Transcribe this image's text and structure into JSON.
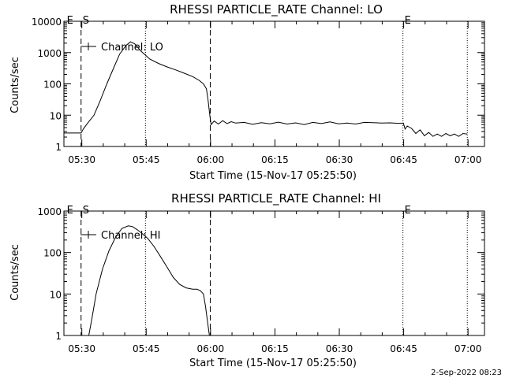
{
  "chart_data": [
    {
      "type": "line",
      "title": "RHESSI PARTICLE_RATE Channel: LO",
      "xlabel": "Start Time (15-Nov-17 05:25:50)",
      "ylabel": "Counts/sec",
      "yscale": "log",
      "ylim": [
        1,
        10000
      ],
      "xlim_minutes": [
        0,
        98
      ],
      "x_ticks": [
        {
          "t": 4.17,
          "label": "05:30"
        },
        {
          "t": 19.17,
          "label": "05:45"
        },
        {
          "t": 34.17,
          "label": "06:00"
        },
        {
          "t": 49.17,
          "label": "06:15"
        },
        {
          "t": 64.17,
          "label": "06:30"
        },
        {
          "t": 79.17,
          "label": "06:45"
        },
        {
          "t": 94.17,
          "label": "07:00"
        }
      ],
      "y_ticks": [
        {
          "v": 1,
          "label": "1"
        },
        {
          "v": 10,
          "label": "10"
        },
        {
          "v": 100,
          "label": "100"
        },
        {
          "v": 1000,
          "label": "1000"
        },
        {
          "v": 10000,
          "label": "10000"
        }
      ],
      "legend": {
        "label": "Channel: LO",
        "position": "top-left"
      },
      "markers": [
        {
          "t": 0.3,
          "label": "E",
          "style": "none"
        },
        {
          "t": 4.0,
          "label": "S",
          "style": "dashed"
        },
        {
          "t": 34.1,
          "label": "",
          "style": "dashed"
        },
        {
          "t": 19.0,
          "label": "",
          "style": "dotted"
        },
        {
          "t": 79.0,
          "label": "E",
          "style": "dotted"
        },
        {
          "t": 94.0,
          "label": "",
          "style": "dotted"
        }
      ],
      "series": [
        {
          "name": "Channel: LO",
          "x": [
            0,
            4.0,
            4.5,
            5.5,
            7,
            8.5,
            10,
            11.5,
            13,
            14.5,
            15.5,
            16.5,
            18,
            20,
            22,
            24,
            26,
            28,
            30,
            31.5,
            32.5,
            33.2,
            33.6,
            34.0,
            34.3,
            35,
            36,
            37,
            38,
            39,
            40,
            42,
            44,
            46,
            48,
            50,
            52,
            54,
            56,
            58,
            60,
            62,
            64,
            66,
            68,
            70,
            72,
            74,
            76,
            78,
            79.1,
            79.5,
            80,
            81,
            82,
            83,
            84,
            85,
            86,
            87,
            88,
            89,
            90,
            91,
            92,
            93,
            94
          ],
          "y": [
            2.7,
            2.7,
            3.6,
            5.5,
            10,
            30,
            100,
            300,
            900,
            1700,
            2200,
            1900,
            1100,
            620,
            450,
            350,
            280,
            220,
            170,
            130,
            100,
            70,
            30,
            10,
            5,
            6.5,
            5.2,
            6.7,
            5.4,
            6.2,
            5.6,
            5.9,
            5.1,
            5.8,
            5.3,
            6.0,
            5.2,
            5.7,
            5.0,
            5.9,
            5.4,
            6.1,
            5.3,
            5.6,
            5.2,
            5.9,
            5.8,
            5.6,
            5.7,
            5.5,
            5.6,
            3.6,
            4.5,
            3.8,
            2.6,
            3.4,
            2.2,
            2.8,
            2.1,
            2.5,
            2.1,
            2.6,
            2.2,
            2.5,
            2.1,
            2.6,
            2.5
          ]
        }
      ]
    },
    {
      "type": "line",
      "title": "RHESSI PARTICLE_RATE Channel: HI",
      "xlabel": "Start Time (15-Nov-17 05:25:50)",
      "ylabel": "Counts/sec",
      "yscale": "log",
      "ylim": [
        1,
        1000
      ],
      "xlim_minutes": [
        0,
        98
      ],
      "x_ticks": [
        {
          "t": 4.17,
          "label": "05:30"
        },
        {
          "t": 19.17,
          "label": "05:45"
        },
        {
          "t": 34.17,
          "label": "06:00"
        },
        {
          "t": 49.17,
          "label": "06:15"
        },
        {
          "t": 64.17,
          "label": "06:30"
        },
        {
          "t": 79.17,
          "label": "06:45"
        },
        {
          "t": 94.17,
          "label": "07:00"
        }
      ],
      "y_ticks": [
        {
          "v": 1,
          "label": "1"
        },
        {
          "v": 10,
          "label": "10"
        },
        {
          "v": 100,
          "label": "100"
        },
        {
          "v": 1000,
          "label": "1000"
        }
      ],
      "legend": {
        "label": "Channel: HI",
        "position": "top-left"
      },
      "markers": [
        {
          "t": 0.3,
          "label": "E",
          "style": "none"
        },
        {
          "t": 4.0,
          "label": "S",
          "style": "dashed"
        },
        {
          "t": 34.1,
          "label": "",
          "style": "dashed"
        },
        {
          "t": 19.0,
          "label": "",
          "style": "dotted"
        },
        {
          "t": 79.0,
          "label": "E",
          "style": "dotted"
        },
        {
          "t": 94.0,
          "label": "",
          "style": "dotted"
        }
      ],
      "series": [
        {
          "name": "Channel: HI",
          "x": [
            5.8,
            6.5,
            7.5,
            9,
            10.5,
            12,
            13.5,
            15,
            16,
            17,
            18,
            19.5,
            21,
            22.5,
            24,
            25.5,
            27,
            28.5,
            30,
            31,
            31.8,
            32.5,
            33.0,
            33.5,
            33.9
          ],
          "y": [
            1,
            2.5,
            10,
            40,
            110,
            230,
            380,
            440,
            420,
            360,
            300,
            220,
            140,
            80,
            45,
            25,
            17,
            14,
            13,
            13,
            12,
            10,
            5,
            2,
            1
          ]
        }
      ]
    }
  ],
  "footer": {
    "date": "2-Sep-2022 08:23"
  }
}
